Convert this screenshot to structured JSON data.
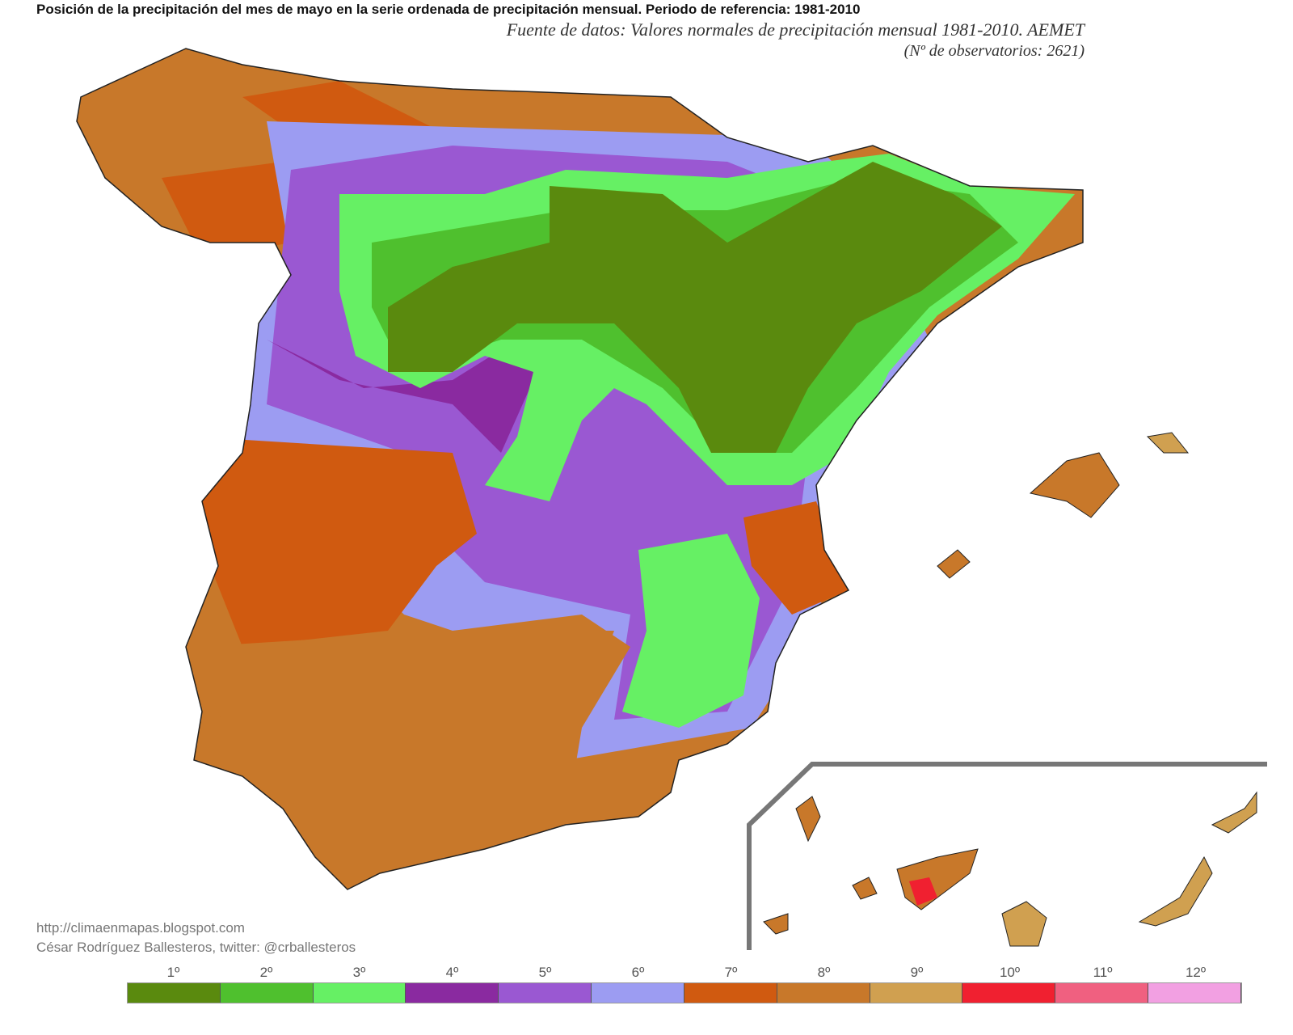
{
  "title": "Posición de la precipitación del mes de mayo en la serie ordenada de precipitación mensual. Periodo de referencia: 1981-2010",
  "source": "Fuente de datos: Valores normales de precipitación mensual 1981-2010. AEMET",
  "observatories": "(Nº de observatorios: 2621)",
  "credits": {
    "url": "http://climaenmapas.blogspot.com",
    "author": "César Rodríguez Ballesteros, twitter: @crballesteros"
  },
  "legend": [
    {
      "label": "1º",
      "color": "#5a8a0e"
    },
    {
      "label": "2º",
      "color": "#4fc02e"
    },
    {
      "label": "3º",
      "color": "#66f064"
    },
    {
      "label": "4º",
      "color": "#8a2aa0"
    },
    {
      "label": "5º",
      "color": "#9a58d2"
    },
    {
      "label": "6º",
      "color": "#9c9cf2"
    },
    {
      "label": "7º",
      "color": "#d05a10"
    },
    {
      "label": "8º",
      "color": "#c8782a"
    },
    {
      "label": "9º",
      "color": "#d0a050"
    },
    {
      "label": "10º",
      "color": "#f02030"
    },
    {
      "label": "11º",
      "color": "#f06080"
    },
    {
      "label": "12º",
      "color": "#f2a0e2"
    }
  ]
}
